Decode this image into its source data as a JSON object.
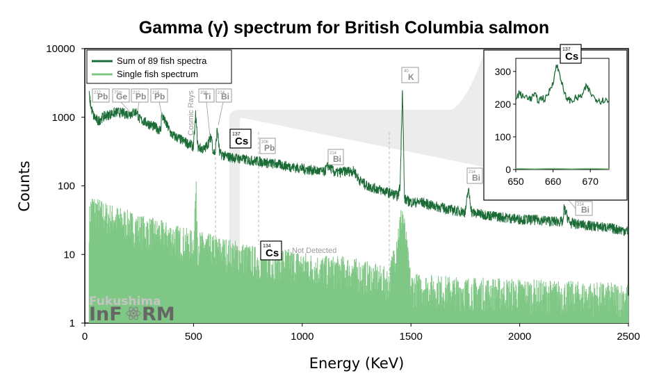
{
  "chart_data": {
    "type": "line",
    "title": "Gamma (γ) spectrum for British Columbia salmon",
    "xlabel": "Energy (KeV)",
    "ylabel": "Counts",
    "xlim": [
      0,
      2500
    ],
    "ylim": [
      1,
      10000
    ],
    "yscale": "log",
    "x_ticks": [
      "0",
      "500",
      "1000",
      "1500",
      "2000",
      "2500"
    ],
    "y_ticks": [
      "1",
      "10",
      "100",
      "1000",
      "10000"
    ],
    "legend": {
      "placement": "top-left",
      "entries": [
        "Sum of 89 fish spectra",
        "Single fish spectrum"
      ]
    },
    "series": [
      {
        "name": "Sum of 89 fish spectra",
        "color": "#1a6b35",
        "points": [
          [
            20,
            2100
          ],
          [
            30,
            1350
          ],
          [
            40,
            1050
          ],
          [
            60,
            880
          ],
          [
            80,
            1000
          ],
          [
            100,
            1080
          ],
          [
            150,
            1200
          ],
          [
            200,
            1120
          ],
          [
            240,
            1220
          ],
          [
            250,
            950
          ],
          [
            300,
            790
          ],
          [
            350,
            650
          ],
          [
            352,
            1100
          ],
          [
            400,
            560
          ],
          [
            450,
            460
          ],
          [
            500,
            380
          ],
          [
            510,
            1100
          ],
          [
            520,
            370
          ],
          [
            550,
            340
          ],
          [
            583,
            530
          ],
          [
            590,
            320
          ],
          [
            600,
            305
          ],
          [
            609,
            700
          ],
          [
            620,
            300
          ],
          [
            650,
            270
          ],
          [
            700,
            255
          ],
          [
            750,
            240
          ],
          [
            800,
            230
          ],
          [
            850,
            215
          ],
          [
            900,
            205
          ],
          [
            950,
            190
          ],
          [
            1000,
            180
          ],
          [
            1050,
            170
          ],
          [
            1100,
            160
          ],
          [
            1120,
            200
          ],
          [
            1150,
            155
          ],
          [
            1200,
            165
          ],
          [
            1240,
            165
          ],
          [
            1260,
            125
          ],
          [
            1300,
            100
          ],
          [
            1350,
            90
          ],
          [
            1400,
            80
          ],
          [
            1440,
            72
          ],
          [
            1450,
            100
          ],
          [
            1461,
            2900
          ],
          [
            1470,
            65
          ],
          [
            1500,
            58
          ],
          [
            1550,
            58
          ],
          [
            1600,
            52
          ],
          [
            1650,
            48
          ],
          [
            1700,
            44
          ],
          [
            1750,
            42
          ],
          [
            1764,
            90
          ],
          [
            1780,
            41
          ],
          [
            1850,
            38
          ],
          [
            1900,
            36
          ],
          [
            2000,
            33
          ],
          [
            2100,
            32
          ],
          [
            2200,
            30
          ],
          [
            2204,
            48
          ],
          [
            2230,
            29
          ],
          [
            2300,
            27
          ],
          [
            2400,
            25
          ],
          [
            2500,
            22
          ]
        ]
      },
      {
        "name": "Single fish spectrum",
        "color": "#7fc784",
        "points": [
          [
            20,
            15
          ],
          [
            30,
            25
          ],
          [
            50,
            22
          ],
          [
            100,
            18
          ],
          [
            150,
            16
          ],
          [
            200,
            14
          ],
          [
            250,
            12
          ],
          [
            300,
            11
          ],
          [
            350,
            10
          ],
          [
            400,
            9
          ],
          [
            450,
            8
          ],
          [
            500,
            7
          ],
          [
            511,
            45
          ],
          [
            520,
            7
          ],
          [
            600,
            6
          ],
          [
            700,
            5
          ],
          [
            800,
            4
          ],
          [
            900,
            4
          ],
          [
            1000,
            3.5
          ],
          [
            1100,
            3
          ],
          [
            1200,
            3
          ],
          [
            1300,
            2.5
          ],
          [
            1400,
            2
          ],
          [
            1461,
            20
          ],
          [
            1500,
            1.7
          ],
          [
            1700,
            1.5
          ],
          [
            2000,
            1.4
          ],
          [
            2200,
            1.3
          ],
          [
            2500,
            1.2
          ]
        ]
      }
    ],
    "inset": {
      "xlim": [
        650,
        675
      ],
      "ylim": [
        0,
        340
      ],
      "x_ticks": [
        "650",
        "660",
        "670"
      ],
      "y_ticks": [
        "0",
        "100",
        "200",
        "300"
      ],
      "label": {
        "mass": "137",
        "element": "Cs"
      },
      "series": [
        {
          "name": "Sum of 89 fish spectra",
          "points": [
            [
              650,
              215
            ],
            [
              651,
              235
            ],
            [
              652,
              220
            ],
            [
              653,
              225
            ],
            [
              654,
              215
            ],
            [
              655,
              230
            ],
            [
              656,
              210
            ],
            [
              657,
              220
            ],
            [
              658,
              215
            ],
            [
              659,
              240
            ],
            [
              660,
              270
            ],
            [
              661,
              320
            ],
            [
              662,
              285
            ],
            [
              663,
              230
            ],
            [
              664,
              215
            ],
            [
              665,
              210
            ],
            [
              666,
              218
            ],
            [
              667,
              220
            ],
            [
              668,
              230
            ],
            [
              669,
              255
            ],
            [
              670,
              235
            ],
            [
              671,
              220
            ],
            [
              672,
              215
            ],
            [
              673,
              210
            ],
            [
              674,
              215
            ],
            [
              675,
              205
            ]
          ]
        },
        {
          "name": "Single fish spectrum",
          "points": [
            [
              650,
              3
            ],
            [
              655,
              2
            ],
            [
              660,
              3
            ],
            [
              665,
              2
            ],
            [
              670,
              3
            ],
            [
              675,
              2
            ]
          ]
        }
      ]
    },
    "annotations": [
      {
        "mass": "212",
        "element": "Pb",
        "energy": 239
      },
      {
        "mass": "75m",
        "element": "Ge",
        "energy": 199
      },
      {
        "mass": "212",
        "element": "Pb",
        "energy": 239
      },
      {
        "mass": "214",
        "element": "Pb",
        "energy": 352
      },
      {
        "mass": "208",
        "element": "Ti",
        "energy": 583
      },
      {
        "mass": "214",
        "element": "Bi",
        "energy": 609
      },
      {
        "mass": "137",
        "element": "Cs",
        "energy": 662
      },
      {
        "mass": "206",
        "element": "Pb",
        "energy": 803
      },
      {
        "mass": "214",
        "element": "Bi",
        "energy": 1120
      },
      {
        "mass": "40",
        "element": "K",
        "energy": 1461
      },
      {
        "mass": "214",
        "element": "Bi",
        "energy": 1764
      },
      {
        "mass": "214",
        "element": "Bi",
        "energy": 2204
      },
      {
        "mass": "134",
        "element": "Cs",
        "energy": 796
      }
    ],
    "notes": {
      "cosmic": "Cosmic Rays",
      "not_detected": "Not Detected"
    }
  },
  "logo": {
    "top": "Fukushima",
    "bottom_left": "InF",
    "bottom_right": "RM"
  }
}
